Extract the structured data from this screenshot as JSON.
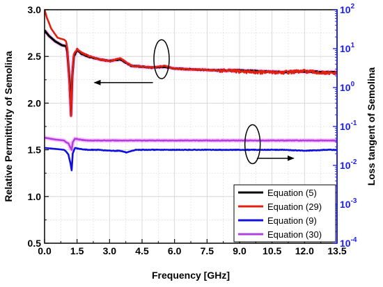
{
  "chart_data": {
    "type": "line",
    "xlabel": "Frequency [GHz]",
    "ylabel_left": "Relative Permittivity of Semolina",
    "ylabel_right": "Loss tangent of Semolina",
    "xlim": [
      0,
      13.5
    ],
    "ylim_left": [
      0.5,
      3.0
    ],
    "ylim_right_log": [
      -4,
      2
    ],
    "right_axis_scale": "log",
    "x_ticks": [
      "0.0",
      "1.5",
      "3.0",
      "4.5",
      "6.0",
      "7.5",
      "9.0",
      "10.5",
      "12.0",
      "13.5"
    ],
    "y_left_ticks": [
      "0.5",
      "1.0",
      "1.5",
      "2.0",
      "2.5",
      "3.0"
    ],
    "y_right_ticks": [
      {
        "base": "10",
        "exp": "-4"
      },
      {
        "base": "10",
        "exp": "-3"
      },
      {
        "base": "10",
        "exp": "-2"
      },
      {
        "base": "10",
        "exp": "-1"
      },
      {
        "base": "10",
        "exp": "0"
      },
      {
        "base": "10",
        "exp": "1"
      },
      {
        "base": "10",
        "exp": "2"
      }
    ],
    "grid": true,
    "legend_position": "bottom-right",
    "colors": {
      "right_axis": "#1a1aff",
      "equation5": "#000000",
      "equation29": "#e02010",
      "equation9": "#1010e0",
      "equation30": "#b040e0",
      "halo": "#ff80ff",
      "grid": "#cfcfcf"
    },
    "series": [
      {
        "name": "Equation (5)",
        "axis": "left",
        "color": "#000000",
        "x": [
          0.0,
          0.2,
          0.5,
          0.8,
          1.0,
          1.05,
          1.15,
          1.22,
          1.28,
          1.35,
          1.5,
          1.7,
          2.0,
          2.5,
          3.0,
          3.5,
          4.0,
          4.5,
          5.0,
          5.5,
          6.0,
          7.0,
          8.0,
          9.0,
          10.0,
          11.0,
          12.0,
          13.0,
          13.5
        ],
        "y": [
          2.78,
          2.72,
          2.66,
          2.62,
          2.61,
          2.55,
          2.25,
          1.87,
          2.3,
          2.5,
          2.57,
          2.53,
          2.5,
          2.47,
          2.45,
          2.47,
          2.4,
          2.39,
          2.38,
          2.39,
          2.37,
          2.36,
          2.35,
          2.35,
          2.34,
          2.33,
          2.34,
          2.33,
          2.33
        ]
      },
      {
        "name": "Equation (29)",
        "axis": "left",
        "color": "#e02010",
        "x": [
          0.0,
          0.1,
          0.3,
          0.6,
          0.9,
          1.0,
          1.05,
          1.15,
          1.22,
          1.28,
          1.35,
          1.5,
          1.7,
          2.0,
          2.5,
          3.0,
          3.5,
          4.0,
          4.5,
          5.0,
          5.5,
          6.0,
          7.0,
          8.0,
          9.0,
          10.0,
          11.0,
          12.0,
          13.0,
          13.5
        ],
        "y": [
          3.0,
          2.92,
          2.8,
          2.7,
          2.68,
          2.66,
          2.58,
          2.2,
          1.86,
          2.32,
          2.52,
          2.58,
          2.54,
          2.51,
          2.47,
          2.45,
          2.48,
          2.4,
          2.39,
          2.38,
          2.4,
          2.37,
          2.36,
          2.35,
          2.34,
          2.33,
          2.33,
          2.34,
          2.32,
          2.32
        ]
      },
      {
        "name": "Equation (9)",
        "axis": "left",
        "color": "#1010e0",
        "x": [
          0.0,
          0.5,
          0.9,
          1.0,
          1.1,
          1.2,
          1.25,
          1.3,
          1.4,
          1.6,
          2.0,
          2.5,
          3.0,
          3.5,
          3.8,
          4.2,
          5.0,
          6.0,
          7.0,
          8.0,
          9.0,
          10.0,
          11.0,
          12.0,
          13.0,
          13.5
        ],
        "y": [
          1.52,
          1.51,
          1.5,
          1.48,
          1.45,
          1.35,
          1.28,
          1.46,
          1.52,
          1.51,
          1.5,
          1.5,
          1.49,
          1.49,
          1.47,
          1.5,
          1.5,
          1.5,
          1.5,
          1.5,
          1.5,
          1.5,
          1.5,
          1.49,
          1.5,
          1.5
        ]
      },
      {
        "name": "Equation (30)",
        "axis": "left",
        "color": "#b040e0",
        "x": [
          0.0,
          0.5,
          0.9,
          1.0,
          1.1,
          1.2,
          1.25,
          1.3,
          1.4,
          1.6,
          2.0,
          2.5,
          3.0,
          3.5,
          4.0,
          5.0,
          6.0,
          7.0,
          8.0,
          9.0,
          10.0,
          11.0,
          12.0,
          13.0,
          13.5
        ],
        "y": [
          1.63,
          1.61,
          1.6,
          1.58,
          1.57,
          1.52,
          1.5,
          1.58,
          1.62,
          1.61,
          1.6,
          1.6,
          1.6,
          1.6,
          1.6,
          1.6,
          1.6,
          1.6,
          1.6,
          1.6,
          1.6,
          1.6,
          1.6,
          1.6,
          1.6
        ]
      }
    ],
    "annotations": [
      {
        "type": "ellipse-arrow",
        "target": "left-axis",
        "ellipse_center": [
          5.4,
          2.47
        ],
        "arrow_from": [
          5.0,
          2.22
        ],
        "arrow_to": [
          2.3,
          2.22
        ]
      },
      {
        "type": "ellipse-arrow",
        "target": "right-axis",
        "ellipse_center": [
          9.6,
          1.56
        ],
        "arrow_from": [
          9.8,
          1.41
        ],
        "arrow_to": [
          11.5,
          1.41
        ]
      }
    ]
  }
}
